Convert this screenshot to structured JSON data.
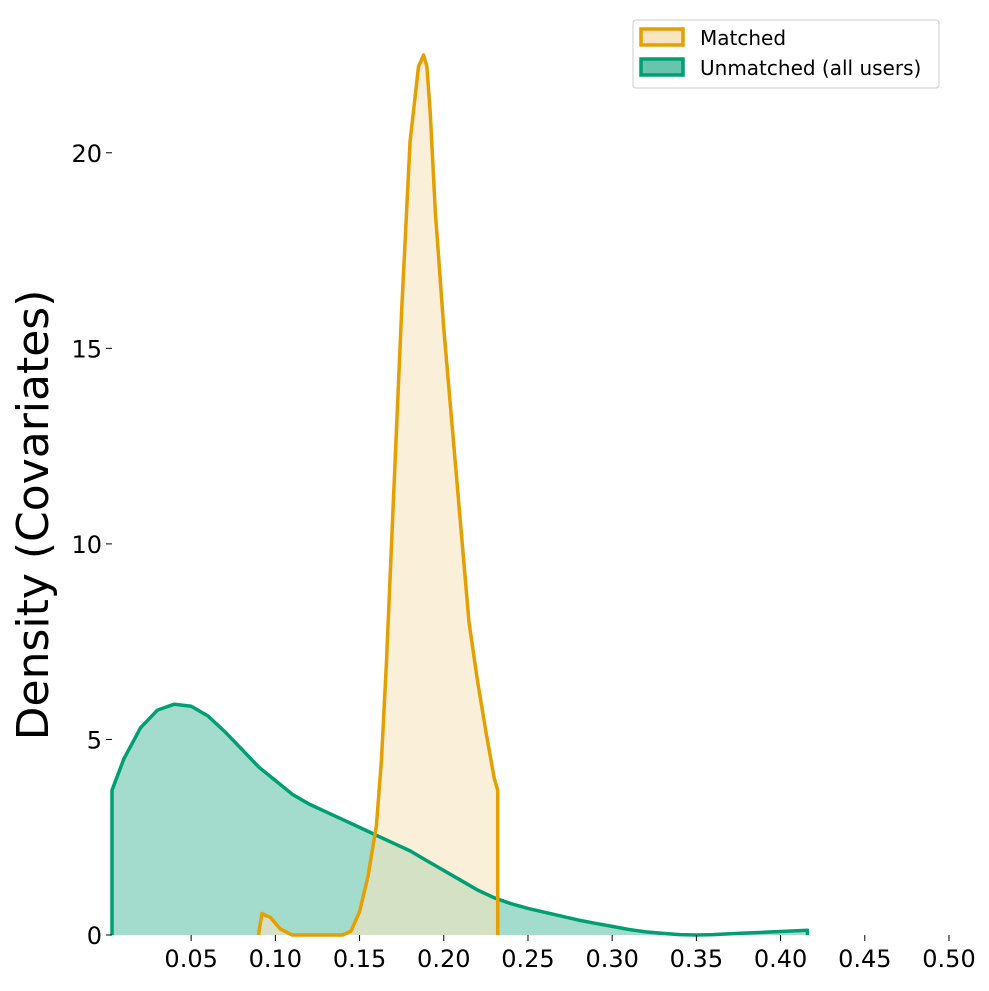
{
  "chart_data": {
    "type": "area",
    "title": "",
    "xlabel": "",
    "ylabel": "Density (Covariates)",
    "xlim": [
      0.003,
      0.5
    ],
    "ylim": [
      0,
      22.5
    ],
    "xticks": [
      0.05,
      0.1,
      0.15,
      0.2,
      0.25,
      0.3,
      0.35,
      0.4,
      0.45,
      0.5
    ],
    "xtick_labels": [
      "0.05",
      "0.10",
      "0.15",
      "0.20",
      "0.25",
      "0.30",
      "0.35",
      "0.40",
      "0.45",
      "0.50"
    ],
    "yticks": [
      0,
      5,
      10,
      15,
      20
    ],
    "ytick_labels": [
      "0",
      "5",
      "10",
      "15",
      "20"
    ],
    "grid": false,
    "legend_position": "top-right",
    "series": [
      {
        "name": "Matched",
        "color": "#E69F00",
        "fill": "#F7E5C0",
        "x": [
          0.09,
          0.092,
          0.097,
          0.103,
          0.11,
          0.14,
          0.145,
          0.15,
          0.155,
          0.16,
          0.163,
          0.166,
          0.17,
          0.175,
          0.18,
          0.185,
          0.188,
          0.19,
          0.192,
          0.195,
          0.2,
          0.205,
          0.21,
          0.215,
          0.22,
          0.225,
          0.23,
          0.232,
          0.232
        ],
        "y": [
          0.0,
          0.55,
          0.45,
          0.15,
          0.0,
          0.0,
          0.1,
          0.6,
          1.5,
          2.8,
          4.5,
          7.0,
          11.0,
          16.0,
          20.3,
          22.2,
          22.5,
          22.2,
          21.0,
          18.5,
          15.5,
          13.0,
          10.5,
          8.0,
          6.5,
          5.2,
          4.0,
          3.7,
          0.0
        ]
      },
      {
        "name": "Unmatched (all users)",
        "color": "#009E73",
        "fill": "#66C5AB",
        "x": [
          0.003,
          0.003,
          0.01,
          0.02,
          0.03,
          0.04,
          0.05,
          0.06,
          0.07,
          0.08,
          0.09,
          0.1,
          0.11,
          0.12,
          0.13,
          0.14,
          0.15,
          0.16,
          0.17,
          0.18,
          0.19,
          0.2,
          0.21,
          0.22,
          0.23,
          0.24,
          0.25,
          0.26,
          0.27,
          0.28,
          0.29,
          0.3,
          0.31,
          0.32,
          0.33,
          0.34,
          0.35,
          0.36,
          0.37,
          0.38,
          0.39,
          0.4,
          0.41,
          0.416,
          0.416
        ],
        "y": [
          0.0,
          3.7,
          4.5,
          5.3,
          5.75,
          5.9,
          5.85,
          5.6,
          5.2,
          4.75,
          4.3,
          3.95,
          3.6,
          3.35,
          3.15,
          2.95,
          2.75,
          2.55,
          2.35,
          2.15,
          1.9,
          1.65,
          1.4,
          1.15,
          0.95,
          0.8,
          0.68,
          0.58,
          0.48,
          0.38,
          0.3,
          0.22,
          0.14,
          0.08,
          0.04,
          0.01,
          0.0,
          0.01,
          0.03,
          0.05,
          0.07,
          0.09,
          0.11,
          0.12,
          0.0
        ]
      }
    ]
  }
}
